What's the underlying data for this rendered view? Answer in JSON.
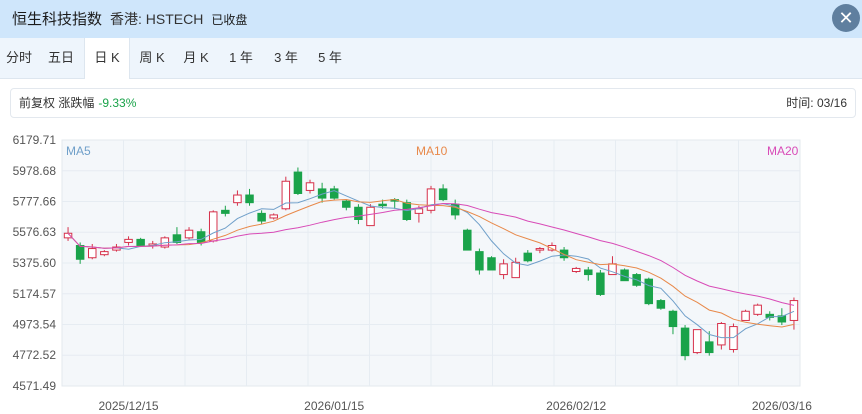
{
  "header": {
    "title": "恒生科技指数",
    "code": "香港: HSTECH",
    "status": "已收盘",
    "close_symbol": "✕"
  },
  "tabs": [
    {
      "label": "分时",
      "active": false
    },
    {
      "label": "五日",
      "active": false
    },
    {
      "label": "日 K",
      "active": true
    },
    {
      "label": "周 K",
      "active": false
    },
    {
      "label": "月 K",
      "active": false
    },
    {
      "label": "1 年",
      "active": false
    },
    {
      "label": "3 年",
      "active": false
    },
    {
      "label": "5 年",
      "active": false
    }
  ],
  "info": {
    "adjust": "前复权",
    "change_label": "涨跌幅",
    "change_value": "-9.33%",
    "time_label": "时间:",
    "time_value": "03/16"
  },
  "colors": {
    "up": "#d6304a",
    "down": "#1aa34a",
    "ma5": "#6f9fc9",
    "ma10": "#e8894a",
    "ma20": "#d84bb7"
  },
  "chart_data": {
    "type": "candlestick",
    "y_ticks": [
      "6179.71",
      "5978.68",
      "5777.66",
      "5576.63",
      "5375.60",
      "5174.57",
      "4973.54",
      "4772.52",
      "4571.49"
    ],
    "ylim": [
      4571.49,
      6179.71
    ],
    "x_tick_labels": [
      {
        "label": "2025/12/15",
        "index": 5
      },
      {
        "label": "2026/01/15",
        "index": 22
      },
      {
        "label": "2026/02/12",
        "index": 42
      },
      {
        "label": "2026/03/16",
        "index": 59
      }
    ],
    "ma_labels": [
      "MA5",
      "MA10",
      "MA20"
    ],
    "candles": [
      [
        5540,
        5610,
        5520,
        5570
      ],
      [
        5490,
        5510,
        5370,
        5400
      ],
      [
        5410,
        5500,
        5400,
        5470
      ],
      [
        5430,
        5460,
        5420,
        5450
      ],
      [
        5460,
        5500,
        5450,
        5480
      ],
      [
        5510,
        5550,
        5490,
        5530
      ],
      [
        5530,
        5540,
        5480,
        5490
      ],
      [
        5490,
        5520,
        5470,
        5500
      ],
      [
        5480,
        5550,
        5470,
        5540
      ],
      [
        5560,
        5610,
        5500,
        5510
      ],
      [
        5540,
        5610,
        5530,
        5590
      ],
      [
        5580,
        5600,
        5490,
        5510
      ],
      [
        5520,
        5720,
        5510,
        5710
      ],
      [
        5720,
        5750,
        5680,
        5700
      ],
      [
        5770,
        5850,
        5750,
        5820
      ],
      [
        5820,
        5860,
        5750,
        5770
      ],
      [
        5700,
        5720,
        5630,
        5650
      ],
      [
        5670,
        5700,
        5660,
        5690
      ],
      [
        5730,
        5940,
        5720,
        5910
      ],
      [
        5970,
        6000,
        5820,
        5830
      ],
      [
        5850,
        5920,
        5830,
        5900
      ],
      [
        5860,
        5900,
        5770,
        5800
      ],
      [
        5860,
        5880,
        5790,
        5800
      ],
      [
        5780,
        5790,
        5720,
        5740
      ],
      [
        5740,
        5760,
        5630,
        5660
      ],
      [
        5620,
        5760,
        5620,
        5740
      ],
      [
        5760,
        5790,
        5730,
        5750
      ],
      [
        5790,
        5800,
        5730,
        5780
      ],
      [
        5770,
        5790,
        5650,
        5660
      ],
      [
        5700,
        5750,
        5640,
        5730
      ],
      [
        5720,
        5880,
        5700,
        5860
      ],
      [
        5860,
        5890,
        5780,
        5790
      ],
      [
        5760,
        5790,
        5660,
        5690
      ],
      [
        5590,
        5600,
        5460,
        5460
      ],
      [
        5450,
        5470,
        5300,
        5330
      ],
      [
        5410,
        5420,
        5330,
        5330
      ],
      [
        5300,
        5400,
        5270,
        5370
      ],
      [
        5280,
        5410,
        5280,
        5380
      ],
      [
        5440,
        5460,
        5380,
        5390
      ],
      [
        5460,
        5480,
        5440,
        5470
      ],
      [
        5460,
        5510,
        5450,
        5490
      ],
      [
        5460,
        5480,
        5390,
        5410
      ],
      [
        5320,
        5350,
        5310,
        5340
      ],
      [
        5330,
        5350,
        5260,
        5300
      ],
      [
        5310,
        5330,
        5160,
        5170
      ],
      [
        5300,
        5420,
        5300,
        5370
      ],
      [
        5330,
        5340,
        5260,
        5260
      ],
      [
        5300,
        5310,
        5220,
        5230
      ],
      [
        5270,
        5280,
        5100,
        5110
      ],
      [
        5130,
        5140,
        5070,
        5080
      ],
      [
        5060,
        5070,
        4910,
        4960
      ],
      [
        4950,
        4970,
        4740,
        4770
      ],
      [
        4790,
        4940,
        4780,
        4940
      ],
      [
        4860,
        4930,
        4770,
        4790
      ],
      [
        4840,
        4990,
        4810,
        4980
      ],
      [
        4810,
        4980,
        4790,
        4960
      ],
      [
        5000,
        5070,
        5000,
        5060
      ],
      [
        5040,
        5110,
        5030,
        5100
      ],
      [
        5040,
        5060,
        5000,
        5020
      ],
      [
        5030,
        5080,
        4970,
        4990
      ],
      [
        5000,
        5150,
        4940,
        5130
      ]
    ]
  }
}
